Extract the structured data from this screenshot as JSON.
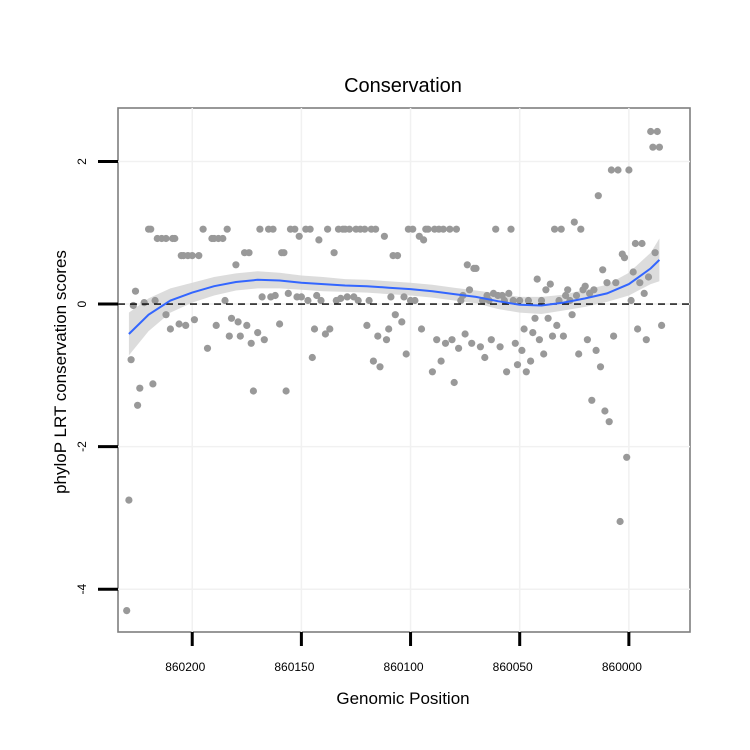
{
  "chart_data": {
    "type": "scatter",
    "title": "Conservation",
    "xlabel": "Genomic Position",
    "ylabel": "phyloP LRT conservation scores",
    "x_reversed": true,
    "xlim": [
      860234,
      859972
    ],
    "ylim": [
      -4.6,
      2.75
    ],
    "x_ticks": [
      860200,
      860150,
      860100,
      860050,
      860000
    ],
    "x_tick_labels": [
      "860200",
      "860150",
      "860100",
      "860050",
      "860000"
    ],
    "y_ticks": [
      2,
      0,
      -2,
      -4
    ],
    "y_tick_labels": [
      "2",
      "0",
      "-2",
      "-4"
    ],
    "reference_line": {
      "y": 0,
      "style": "dashed"
    },
    "smooth": {
      "method": "loess",
      "x": [
        860229,
        860220,
        860210,
        860200,
        860190,
        860180,
        860170,
        860160,
        860150,
        860140,
        860130,
        860120,
        860110,
        860100,
        860090,
        860080,
        860070,
        860060,
        860050,
        860040,
        860030,
        860020,
        860010,
        860000,
        859990,
        859986
      ],
      "y": [
        -0.42,
        -0.15,
        0.05,
        0.16,
        0.25,
        0.31,
        0.34,
        0.33,
        0.3,
        0.28,
        0.26,
        0.25,
        0.23,
        0.21,
        0.18,
        0.14,
        0.1,
        0.04,
        -0.01,
        -0.02,
        0.02,
        0.08,
        0.15,
        0.28,
        0.5,
        0.62
      ],
      "lower": [
        -0.72,
        -0.38,
        -0.12,
        0.02,
        0.12,
        0.19,
        0.22,
        0.22,
        0.2,
        0.18,
        0.17,
        0.16,
        0.14,
        0.12,
        0.09,
        0.05,
        0.01,
        -0.07,
        -0.12,
        -0.14,
        -0.09,
        -0.04,
        0.03,
        0.12,
        0.28,
        0.32
      ],
      "upper": [
        -0.12,
        0.08,
        0.22,
        0.3,
        0.38,
        0.43,
        0.46,
        0.44,
        0.4,
        0.38,
        0.35,
        0.34,
        0.32,
        0.3,
        0.27,
        0.23,
        0.19,
        0.15,
        0.1,
        0.1,
        0.13,
        0.2,
        0.27,
        0.44,
        0.72,
        0.92
      ]
    },
    "points": [
      [
        860230,
        -4.3
      ],
      [
        860229,
        -2.75
      ],
      [
        860228,
        -0.78
      ],
      [
        860227,
        -0.02
      ],
      [
        860226,
        0.18
      ],
      [
        860225,
        -1.42
      ],
      [
        860224,
        -1.18
      ],
      [
        860222,
        0.02
      ],
      [
        860220,
        1.05
      ],
      [
        860219,
        1.05
      ],
      [
        860218,
        -1.12
      ],
      [
        860217,
        0.05
      ],
      [
        860216,
        0.92
      ],
      [
        860214,
        0.92
      ],
      [
        860212,
        -0.15
      ],
      [
        860212,
        0.92
      ],
      [
        860210,
        -0.35
      ],
      [
        860209,
        0.92
      ],
      [
        860208,
        0.92
      ],
      [
        860206,
        -0.28
      ],
      [
        860205,
        0.68
      ],
      [
        860204,
        0.68
      ],
      [
        860203,
        -0.3
      ],
      [
        860202,
        0.68
      ],
      [
        860200,
        0.68
      ],
      [
        860199,
        -0.22
      ],
      [
        860197,
        0.68
      ],
      [
        860195,
        1.05
      ],
      [
        860193,
        -0.62
      ],
      [
        860191,
        0.92
      ],
      [
        860190,
        0.92
      ],
      [
        860189,
        -0.3
      ],
      [
        860188,
        0.92
      ],
      [
        860186,
        0.92
      ],
      [
        860185,
        0.05
      ],
      [
        860184,
        1.05
      ],
      [
        860183,
        -0.45
      ],
      [
        860182,
        -0.2
      ],
      [
        860180,
        0.55
      ],
      [
        860179,
        -0.25
      ],
      [
        860178,
        -0.45
      ],
      [
        860176,
        0.72
      ],
      [
        860175,
        -0.3
      ],
      [
        860174,
        0.72
      ],
      [
        860173,
        -0.55
      ],
      [
        860172,
        -1.22
      ],
      [
        860170,
        -0.4
      ],
      [
        860169,
        1.05
      ],
      [
        860168,
        0.1
      ],
      [
        860167,
        -0.5
      ],
      [
        860165,
        1.05
      ],
      [
        860164,
        0.1
      ],
      [
        860163,
        1.05
      ],
      [
        860162,
        0.12
      ],
      [
        860160,
        -0.28
      ],
      [
        860159,
        0.72
      ],
      [
        860158,
        0.72
      ],
      [
        860157,
        -1.22
      ],
      [
        860156,
        0.15
      ],
      [
        860155,
        1.05
      ],
      [
        860153,
        1.05
      ],
      [
        860152,
        0.1
      ],
      [
        860151,
        0.95
      ],
      [
        860150,
        0.1
      ],
      [
        860148,
        1.05
      ],
      [
        860147,
        0.05
      ],
      [
        860146,
        1.05
      ],
      [
        860145,
        -0.75
      ],
      [
        860144,
        -0.35
      ],
      [
        860143,
        0.12
      ],
      [
        860142,
        0.9
      ],
      [
        860141,
        0.05
      ],
      [
        860139,
        -0.42
      ],
      [
        860138,
        1.05
      ],
      [
        860137,
        -0.35
      ],
      [
        860135,
        0.72
      ],
      [
        860134,
        0.05
      ],
      [
        860133,
        1.05
      ],
      [
        860132,
        0.08
      ],
      [
        860131,
        1.05
      ],
      [
        860130,
        1.05
      ],
      [
        860129,
        0.1
      ],
      [
        860128,
        1.05
      ],
      [
        860126,
        0.1
      ],
      [
        860125,
        1.05
      ],
      [
        860124,
        0.05
      ],
      [
        860123,
        1.05
      ],
      [
        860121,
        1.05
      ],
      [
        860120,
        -0.3
      ],
      [
        860119,
        0.05
      ],
      [
        860118,
        1.05
      ],
      [
        860117,
        -0.8
      ],
      [
        860116,
        1.05
      ],
      [
        860115,
        -0.45
      ],
      [
        860114,
        -0.88
      ],
      [
        860112,
        0.95
      ],
      [
        860111,
        -0.5
      ],
      [
        860110,
        -0.35
      ],
      [
        860109,
        0.1
      ],
      [
        860108,
        0.68
      ],
      [
        860107,
        -0.15
      ],
      [
        860106,
        0.68
      ],
      [
        860104,
        -0.25
      ],
      [
        860103,
        0.1
      ],
      [
        860102,
        -0.7
      ],
      [
        860101,
        1.05
      ],
      [
        860100,
        0.05
      ],
      [
        860099,
        1.05
      ],
      [
        860098,
        0.05
      ],
      [
        860096,
        0.95
      ],
      [
        860095,
        -0.35
      ],
      [
        860094,
        0.9
      ],
      [
        860093,
        1.05
      ],
      [
        860092,
        1.05
      ],
      [
        860090,
        -0.95
      ],
      [
        860089,
        1.05
      ],
      [
        860088,
        -0.5
      ],
      [
        860087,
        1.05
      ],
      [
        860086,
        -0.8
      ],
      [
        860085,
        1.05
      ],
      [
        860084,
        -0.55
      ],
      [
        860082,
        1.05
      ],
      [
        860081,
        -0.5
      ],
      [
        860080,
        -1.1
      ],
      [
        860079,
        1.05
      ],
      [
        860078,
        -0.62
      ],
      [
        860077,
        0.05
      ],
      [
        860076,
        0.12
      ],
      [
        860075,
        -0.42
      ],
      [
        860074,
        0.55
      ],
      [
        860073,
        0.2
      ],
      [
        860072,
        -0.55
      ],
      [
        860071,
        0.5
      ],
      [
        860070,
        0.5
      ],
      [
        860068,
        -0.6
      ],
      [
        860067,
        0.05
      ],
      [
        860066,
        -0.75
      ],
      [
        860065,
        0.12
      ],
      [
        860064,
        0.05
      ],
      [
        860063,
        -0.5
      ],
      [
        860062,
        0.15
      ],
      [
        860061,
        1.05
      ],
      [
        860060,
        0.12
      ],
      [
        860059,
        -0.6
      ],
      [
        860058,
        0.12
      ],
      [
        860057,
        0.05
      ],
      [
        860056,
        -0.95
      ],
      [
        860055,
        0.15
      ],
      [
        860054,
        1.05
      ],
      [
        860053,
        0.05
      ],
      [
        860052,
        -0.55
      ],
      [
        860051,
        -0.85
      ],
      [
        860050,
        0.05
      ],
      [
        860049,
        -0.65
      ],
      [
        860048,
        -0.35
      ],
      [
        860047,
        -0.95
      ],
      [
        860046,
        0.05
      ],
      [
        860045,
        -0.8
      ],
      [
        860044,
        -0.4
      ],
      [
        860043,
        -0.2
      ],
      [
        860042,
        0.35
      ],
      [
        860041,
        -0.5
      ],
      [
        860040,
        0.05
      ],
      [
        860039,
        -0.7
      ],
      [
        860038,
        0.2
      ],
      [
        860037,
        -0.2
      ],
      [
        860036,
        0.28
      ],
      [
        860035,
        -0.45
      ],
      [
        860034,
        1.05
      ],
      [
        860033,
        -0.3
      ],
      [
        860032,
        0.05
      ],
      [
        860031,
        1.05
      ],
      [
        860030,
        -0.45
      ],
      [
        860029,
        0.12
      ],
      [
        860028,
        0.2
      ],
      [
        860027,
        0.05
      ],
      [
        860026,
        -0.15
      ],
      [
        860025,
        1.15
      ],
      [
        860024,
        0.12
      ],
      [
        860023,
        -0.7
      ],
      [
        860022,
        1.05
      ],
      [
        860021,
        0.2
      ],
      [
        860020,
        0.25
      ],
      [
        860019,
        -0.5
      ],
      [
        860018,
        0.15
      ],
      [
        860017,
        -1.35
      ],
      [
        860016,
        0.2
      ],
      [
        860015,
        -0.65
      ],
      [
        860014,
        1.52
      ],
      [
        860013,
        -0.88
      ],
      [
        860012,
        0.48
      ],
      [
        860011,
        -1.5
      ],
      [
        860010,
        0.3
      ],
      [
        860009,
        -1.65
      ],
      [
        860008,
        1.88
      ],
      [
        860007,
        -0.45
      ],
      [
        860006,
        0.3
      ],
      [
        860005,
        1.88
      ],
      [
        860004,
        -3.05
      ],
      [
        860003,
        0.7
      ],
      [
        860002,
        0.65
      ],
      [
        860001,
        -2.15
      ],
      [
        860000,
        1.88
      ],
      [
        859999,
        0.05
      ],
      [
        859998,
        0.45
      ],
      [
        859997,
        0.85
      ],
      [
        859996,
        -0.35
      ],
      [
        859995,
        0.3
      ],
      [
        859994,
        0.85
      ],
      [
        859993,
        0.15
      ],
      [
        859992,
        -0.5
      ],
      [
        859991,
        0.38
      ],
      [
        859990,
        2.42
      ],
      [
        859989,
        2.2
      ],
      [
        859988,
        0.72
      ],
      [
        859987,
        2.42
      ],
      [
        859986,
        2.2
      ],
      [
        859985,
        -0.3
      ]
    ]
  }
}
